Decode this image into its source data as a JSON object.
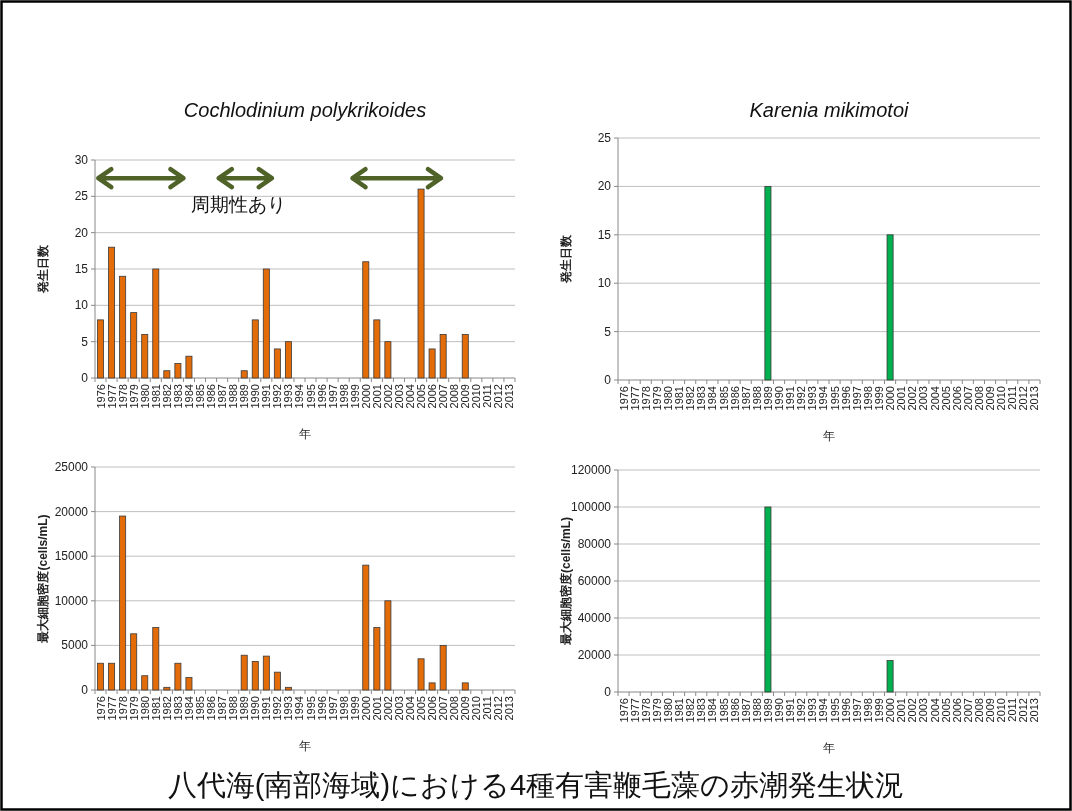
{
  "chart_data": [
    {
      "type": "bar",
      "title": "Cochlodinium polykrikoides",
      "ylabel": "発生日数",
      "xlabel": "年",
      "annotations": [
        "周期性あり"
      ],
      "categories": [
        "1976",
        "1977",
        "1978",
        "1979",
        "1980",
        "1981",
        "1982",
        "1983",
        "1984",
        "1985",
        "1986",
        "1987",
        "1988",
        "1989",
        "1990",
        "1991",
        "1992",
        "1993",
        "1994",
        "1995",
        "1996",
        "1997",
        "1998",
        "1999",
        "2000",
        "2001",
        "2002",
        "2003",
        "2004",
        "2005",
        "2006",
        "2007",
        "2008",
        "2009",
        "2010",
        "2011",
        "2012",
        "2013"
      ],
      "values": [
        8,
        18,
        14,
        9,
        6,
        15,
        1,
        2,
        3,
        null,
        null,
        null,
        null,
        1,
        8,
        15,
        4,
        5,
        null,
        null,
        null,
        null,
        null,
        null,
        16,
        8,
        5,
        null,
        null,
        26,
        4,
        6,
        null,
        6,
        null,
        null,
        null,
        null
      ],
      "color": "#e36c09",
      "ylim": [
        0,
        30
      ],
      "yticks": [
        0,
        5,
        10,
        15,
        20,
        25,
        30
      ],
      "grid": "y"
    },
    {
      "type": "bar",
      "ylabel": "最大細胞密度(cells/mL)",
      "xlabel": "年",
      "categories": [
        "1976",
        "1977",
        "1978",
        "1979",
        "1980",
        "1981",
        "1982",
        "1983",
        "1984",
        "1985",
        "1986",
        "1987",
        "1988",
        "1989",
        "1990",
        "1991",
        "1992",
        "1993",
        "1994",
        "1995",
        "1996",
        "1997",
        "1998",
        "1999",
        "2000",
        "2001",
        "2002",
        "2003",
        "2004",
        "2005",
        "2006",
        "2007",
        "2008",
        "2009",
        "2010",
        "2011",
        "2012",
        "2013"
      ],
      "values": [
        3000,
        3000,
        19500,
        6300,
        1600,
        7000,
        300,
        3000,
        1400,
        null,
        null,
        null,
        null,
        3900,
        3200,
        3800,
        2000,
        300,
        null,
        null,
        null,
        null,
        null,
        null,
        14000,
        7000,
        10000,
        null,
        null,
        3500,
        800,
        5000,
        null,
        800,
        null,
        null,
        null,
        null
      ],
      "color": "#e36c09",
      "ylim": [
        0,
        25000
      ],
      "yticks": [
        0,
        5000,
        10000,
        15000,
        20000,
        25000
      ],
      "grid": "y"
    },
    {
      "type": "bar",
      "title": "Karenia mikimotoi",
      "ylabel": "発生日数",
      "xlabel": "年",
      "categories": [
        "1976",
        "1977",
        "1978",
        "1979",
        "1980",
        "1981",
        "1982",
        "1983",
        "1984",
        "1985",
        "1986",
        "1987",
        "1988",
        "1989",
        "1990",
        "1991",
        "1992",
        "1993",
        "1994",
        "1995",
        "1996",
        "1997",
        "1998",
        "1999",
        "2000",
        "2001",
        "2002",
        "2003",
        "2004",
        "2005",
        "2006",
        "2007",
        "2008",
        "2009",
        "2010",
        "2011",
        "2012",
        "2013"
      ],
      "values": [
        null,
        null,
        null,
        null,
        null,
        null,
        null,
        null,
        null,
        null,
        null,
        null,
        null,
        20,
        null,
        null,
        null,
        null,
        null,
        null,
        null,
        null,
        null,
        null,
        15,
        null,
        null,
        null,
        null,
        null,
        null,
        null,
        null,
        null,
        null,
        null,
        null,
        null
      ],
      "color": "#00b050",
      "ylim": [
        0,
        25
      ],
      "yticks": [
        0,
        5,
        10,
        15,
        20,
        25
      ],
      "grid": "y"
    },
    {
      "type": "bar",
      "ylabel": "最大細胞密度(cells/mL)",
      "xlabel": "年",
      "annotations": [
        "八代海(南部海域)における4種有害鞭毛藻の赤潮発生状況"
      ],
      "categories": [
        "1976",
        "1977",
        "1978",
        "1979",
        "1980",
        "1981",
        "1982",
        "1983",
        "1984",
        "1985",
        "1986",
        "1987",
        "1988",
        "1989",
        "1990",
        "1991",
        "1992",
        "1993",
        "1994",
        "1995",
        "1996",
        "1997",
        "1998",
        "1999",
        "2000",
        "2001",
        "2002",
        "2003",
        "2004",
        "2005",
        "2006",
        "2007",
        "2008",
        "2009",
        "2010",
        "2011",
        "2012",
        "2013"
      ],
      "values": [
        null,
        null,
        null,
        null,
        null,
        null,
        null,
        null,
        null,
        null,
        null,
        null,
        null,
        100000,
        null,
        null,
        null,
        null,
        null,
        null,
        null,
        null,
        null,
        null,
        17000,
        null,
        null,
        null,
        null,
        null,
        null,
        null,
        null,
        null,
        null,
        null,
        null,
        null
      ],
      "color": "#00b050",
      "ylim": [
        0,
        120000
      ],
      "yticks": [
        0,
        20000,
        40000,
        60000,
        80000,
        100000,
        120000
      ],
      "grid": "y"
    }
  ]
}
